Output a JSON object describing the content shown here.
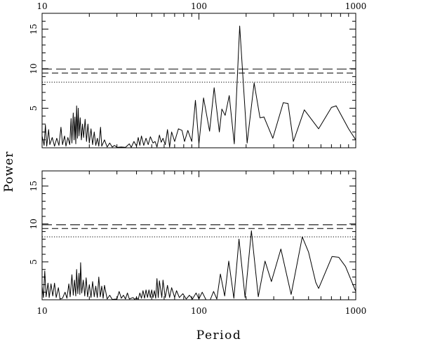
{
  "chart_data": [
    {
      "type": "line",
      "panel": "top",
      "xlabel": "Period",
      "ylabel": "Power",
      "xscale": "log",
      "xlim": [
        10,
        1000
      ],
      "ylim": [
        0,
        17
      ],
      "x_tick_labels": [
        "10",
        "100",
        "1000"
      ],
      "x_tick_labels_position": "top",
      "y_tick_labels": [
        "5",
        "10",
        "15"
      ],
      "thresholds": [
        {
          "value": 9.95,
          "style": "long-dash",
          "color": "#555555"
        },
        {
          "value": 9.45,
          "style": "dash",
          "color": "#000000"
        },
        {
          "value": 8.3,
          "style": "dotted",
          "color": "#000000"
        }
      ],
      "points": [
        [
          10,
          1.5
        ],
        [
          10.3,
          0.3
        ],
        [
          10.5,
          2.9
        ],
        [
          10.7,
          0.2
        ],
        [
          11,
          2.3
        ],
        [
          11.2,
          0.4
        ],
        [
          11.6,
          1.3
        ],
        [
          12,
          0.2
        ],
        [
          12.4,
          1.2
        ],
        [
          12.8,
          0.3
        ],
        [
          13.2,
          2.6
        ],
        [
          13.5,
          0.4
        ],
        [
          13.9,
          1.5
        ],
        [
          14.2,
          0.2
        ],
        [
          14.6,
          1.3
        ],
        [
          15,
          0.4
        ],
        [
          15.3,
          3.7
        ],
        [
          15.5,
          0.6
        ],
        [
          15.8,
          4.4
        ],
        [
          16,
          1.0
        ],
        [
          16.2,
          3.9
        ],
        [
          16.4,
          0.5
        ],
        [
          16.6,
          5.3
        ],
        [
          16.8,
          1.2
        ],
        [
          17,
          5.0
        ],
        [
          17.2,
          1.5
        ],
        [
          17.5,
          3.8
        ],
        [
          17.8,
          1.0
        ],
        [
          18.1,
          3.0
        ],
        [
          18.4,
          1.3
        ],
        [
          18.8,
          3.6
        ],
        [
          19.2,
          0.8
        ],
        [
          19.6,
          3.0
        ],
        [
          20,
          0.6
        ],
        [
          20.5,
          2.4
        ],
        [
          21,
          0.4
        ],
        [
          21.5,
          2.0
        ],
        [
          22,
          0.3
        ],
        [
          22.5,
          1.2
        ],
        [
          23,
          0.2
        ],
        [
          23.6,
          2.6
        ],
        [
          24,
          0.2
        ],
        [
          25,
          1.0
        ],
        [
          26,
          0.1
        ],
        [
          27,
          0.6
        ],
        [
          28,
          0.1
        ],
        [
          29,
          0.3
        ],
        [
          30,
          0.05
        ],
        [
          32,
          0.1
        ],
        [
          34,
          0.05
        ],
        [
          36,
          0.5
        ],
        [
          37,
          0.05
        ],
        [
          38.5,
          0.8
        ],
        [
          40,
          0.2
        ],
        [
          41,
          1.3
        ],
        [
          42,
          0.3
        ],
        [
          43,
          1.5
        ],
        [
          44.5,
          0.3
        ],
        [
          46,
          1.2
        ],
        [
          47.5,
          0.4
        ],
        [
          49,
          1.4
        ],
        [
          51,
          0.6
        ],
        [
          52.5,
          0.8
        ],
        [
          54,
          0.1
        ],
        [
          56,
          1.6
        ],
        [
          57.5,
          0.7
        ],
        [
          59,
          1.2
        ],
        [
          61,
          0.4
        ],
        [
          63,
          2.3
        ],
        [
          65,
          0.1
        ],
        [
          67,
          2.0
        ],
        [
          70,
          0.8
        ],
        [
          74,
          2.4
        ],
        [
          78,
          2.2
        ],
        [
          81,
          0.8
        ],
        [
          85,
          2.2
        ],
        [
          90,
          0.8
        ],
        [
          95,
          6.0
        ],
        [
          100,
          0.5
        ],
        [
          107,
          6.3
        ],
        [
          117,
          2.1
        ],
        [
          125,
          7.6
        ],
        [
          135,
          2.0
        ],
        [
          140,
          4.9
        ],
        [
          147,
          4.1
        ],
        [
          156,
          6.6
        ],
        [
          168,
          0.5
        ],
        [
          182,
          15.4
        ],
        [
          203,
          0.6
        ],
        [
          225,
          8.2
        ],
        [
          245,
          3.8
        ],
        [
          260,
          3.9
        ],
        [
          296,
          1.2
        ],
        [
          345,
          5.7
        ],
        [
          370,
          5.6
        ],
        [
          400,
          0.8
        ],
        [
          470,
          4.8
        ],
        [
          580,
          2.4
        ],
        [
          700,
          5.1
        ],
        [
          750,
          5.3
        ],
        [
          900,
          2.4
        ],
        [
          1000,
          1.0
        ]
      ]
    },
    {
      "type": "line",
      "panel": "bottom",
      "xlabel": "Period",
      "ylabel": "Power",
      "xscale": "log",
      "xlim": [
        10,
        1000
      ],
      "ylim": [
        0,
        17
      ],
      "x_tick_labels": [
        "10",
        "100",
        "1000"
      ],
      "x_tick_labels_position": "bottom",
      "y_tick_labels": [
        "5",
        "10",
        "15"
      ],
      "thresholds": [
        {
          "value": 9.9,
          "style": "long-dash",
          "color": "#555555"
        },
        {
          "value": 9.4,
          "style": "dash",
          "color": "#000000"
        },
        {
          "value": 8.3,
          "style": "dotted",
          "color": "#000000"
        }
      ],
      "points": [
        [
          10,
          1.8
        ],
        [
          10.2,
          0.3
        ],
        [
          10.4,
          3.8
        ],
        [
          10.6,
          0.4
        ],
        [
          10.9,
          2.2
        ],
        [
          11.1,
          0.3
        ],
        [
          11.4,
          2.1
        ],
        [
          11.7,
          0.5
        ],
        [
          12,
          2.2
        ],
        [
          12.3,
          0.3
        ],
        [
          12.7,
          1.6
        ],
        [
          13,
          0.1
        ],
        [
          13.5,
          0.2
        ],
        [
          14,
          1.0
        ],
        [
          14.4,
          0.2
        ],
        [
          14.8,
          2.1
        ],
        [
          15.1,
          0.4
        ],
        [
          15.5,
          3.3
        ],
        [
          15.8,
          0.6
        ],
        [
          16.1,
          2.6
        ],
        [
          16.4,
          0.5
        ],
        [
          16.6,
          4.0
        ],
        [
          16.9,
          0.8
        ],
        [
          17.2,
          3.5
        ],
        [
          17.4,
          0.7
        ],
        [
          17.6,
          4.9
        ],
        [
          17.9,
          0.9
        ],
        [
          18.3,
          2.6
        ],
        [
          18.7,
          0.5
        ],
        [
          19.1,
          2.9
        ],
        [
          19.5,
          0.4
        ],
        [
          20,
          2.0
        ],
        [
          20.5,
          0.3
        ],
        [
          21,
          2.4
        ],
        [
          21.5,
          0.4
        ],
        [
          22,
          1.8
        ],
        [
          22.5,
          0.3
        ],
        [
          23,
          3.0
        ],
        [
          23.5,
          0.4
        ],
        [
          24,
          1.8
        ],
        [
          24.5,
          0.2
        ],
        [
          25,
          1.9
        ],
        [
          26,
          0.1
        ],
        [
          27,
          0.6
        ],
        [
          28,
          0.05
        ],
        [
          30,
          0.1
        ],
        [
          31,
          1.1
        ],
        [
          32,
          0.2
        ],
        [
          33,
          0.6
        ],
        [
          34,
          0.1
        ],
        [
          35,
          0.9
        ],
        [
          36,
          0.1
        ],
        [
          38,
          0.3
        ],
        [
          39,
          0.05
        ],
        [
          40,
          0.3
        ],
        [
          41,
          0.05
        ],
        [
          42,
          0.9
        ],
        [
          43,
          0.2
        ],
        [
          44,
          1.2
        ],
        [
          45,
          0.2
        ],
        [
          46,
          1.3
        ],
        [
          47,
          0.3
        ],
        [
          48,
          1.3
        ],
        [
          49,
          0.3
        ],
        [
          50,
          1.3
        ],
        [
          51,
          0.3
        ],
        [
          52,
          1.2
        ],
        [
          53,
          0.2
        ],
        [
          54,
          2.8
        ],
        [
          55,
          0.3
        ],
        [
          56,
          2.5
        ],
        [
          58,
          0.3
        ],
        [
          59,
          2.6
        ],
        [
          61,
          0.3
        ],
        [
          63,
          1.9
        ],
        [
          65,
          0.3
        ],
        [
          67,
          1.6
        ],
        [
          70,
          0.3
        ],
        [
          72,
          1.2
        ],
        [
          75,
          0.3
        ],
        [
          79,
          0.8
        ],
        [
          83,
          0.1
        ],
        [
          87,
          0.6
        ],
        [
          91,
          0.1
        ],
        [
          96,
          0.9
        ],
        [
          100,
          0.1
        ],
        [
          105,
          1.0
        ],
        [
          111,
          0.0
        ],
        [
          118,
          0.0
        ],
        [
          124,
          1.1
        ],
        [
          130,
          0.1
        ],
        [
          137,
          3.4
        ],
        [
          146,
          0.5
        ],
        [
          155,
          5.1
        ],
        [
          167,
          0.2
        ],
        [
          180,
          8.0
        ],
        [
          197,
          0.3
        ],
        [
          216,
          9.1
        ],
        [
          239,
          0.4
        ],
        [
          264,
          5.1
        ],
        [
          290,
          2.4
        ],
        [
          333,
          6.7
        ],
        [
          387,
          0.7
        ],
        [
          456,
          8.3
        ],
        [
          500,
          6.3
        ],
        [
          556,
          2.3
        ],
        [
          580,
          1.5
        ],
        [
          706,
          5.7
        ],
        [
          780,
          5.6
        ],
        [
          860,
          4.4
        ],
        [
          1000,
          1.1
        ]
      ]
    }
  ]
}
